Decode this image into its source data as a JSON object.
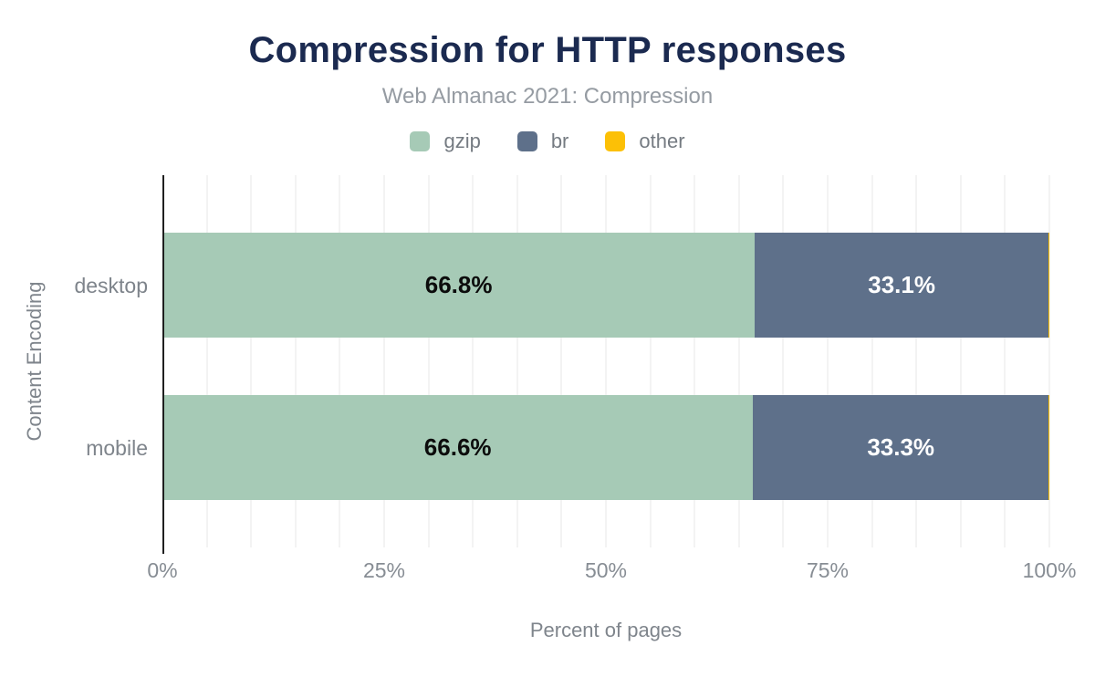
{
  "chart_data": {
    "type": "bar",
    "orientation": "horizontal",
    "stacked": true,
    "title": "Compression for HTTP responses",
    "subtitle": "Web Almanac 2021: Compression",
    "xlabel": "Percent of pages",
    "ylabel": "Content Encoding",
    "categories": [
      "desktop",
      "mobile"
    ],
    "series": [
      {
        "name": "gzip",
        "color": "#a6cab6",
        "label_color": "#0c0c0c",
        "values": [
          66.8,
          66.6
        ]
      },
      {
        "name": "br",
        "color": "#5e708a",
        "label_color": "#ffffff",
        "values": [
          33.1,
          33.3
        ]
      },
      {
        "name": "other",
        "color": "#fcc006",
        "label_color": "#0c0c0c",
        "values": [
          0.1,
          0.1
        ]
      }
    ],
    "value_labels": [
      [
        "66.8%",
        "33.1%"
      ],
      [
        "66.6%",
        "33.3%"
      ]
    ],
    "xlim": [
      0,
      100
    ],
    "xtick_values": [
      0,
      25,
      50,
      75,
      100
    ],
    "xticks": [
      "0%",
      "25%",
      "50%",
      "75%",
      "100%"
    ],
    "grid": "vertical minor gridlines every 5%, light gray",
    "legend_position": "top-center"
  },
  "colors": {
    "title": "#1b2a50",
    "subtitle_gray": "#959ba2",
    "axis_text_gray": "#878d94",
    "gridline": "#f3f3f3",
    "axis_line": "#1f1f1f",
    "background": "#ffffff"
  }
}
